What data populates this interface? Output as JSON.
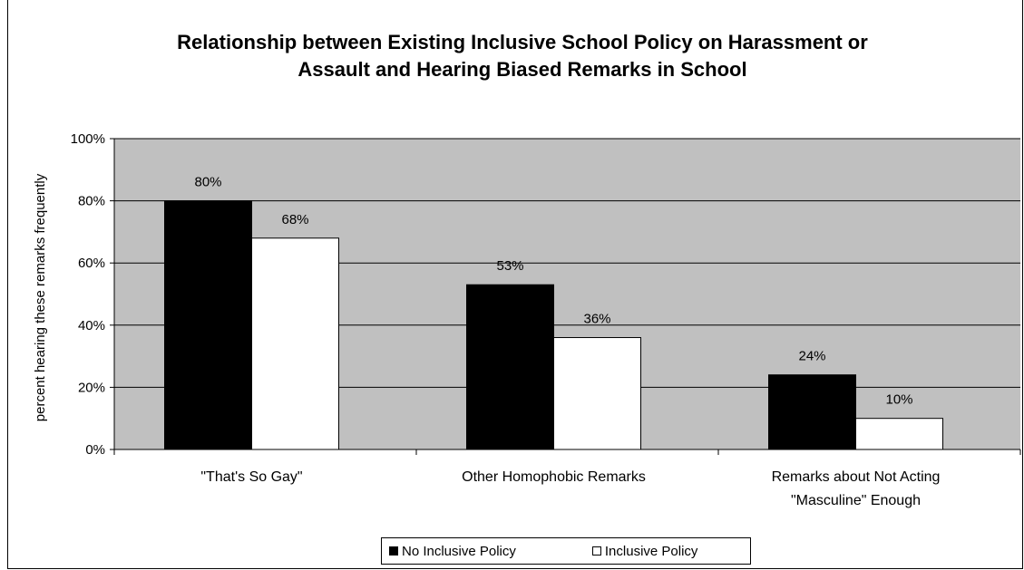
{
  "chart_data": {
    "type": "bar",
    "title_lines": [
      "Relationship between Existing Inclusive School Policy on Harassment or",
      "Assault and Hearing Biased Remarks in School"
    ],
    "ylabel": "percent hearing these remarks frequently",
    "xlabel": "",
    "ylim": [
      0,
      100
    ],
    "yticks": [
      "0%",
      "20%",
      "40%",
      "60%",
      "80%",
      "100%"
    ],
    "categories": [
      [
        "\"That's So Gay\""
      ],
      [
        "Other Homophobic Remarks"
      ],
      [
        "Remarks about Not Acting",
        "\"Masculine\" Enough"
      ]
    ],
    "series": [
      {
        "name": "No Inclusive Policy",
        "values": [
          80,
          53,
          24
        ],
        "labels": [
          "80%",
          "53%",
          "24%"
        ],
        "color": "#000000"
      },
      {
        "name": "Inclusive Policy",
        "values": [
          68,
          36,
          10
        ],
        "labels": [
          "68%",
          "36%",
          "10%"
        ],
        "color": "#ffffff"
      }
    ],
    "plot_background": "#c0c0c0",
    "grid": true,
    "legend_position": "bottom"
  }
}
